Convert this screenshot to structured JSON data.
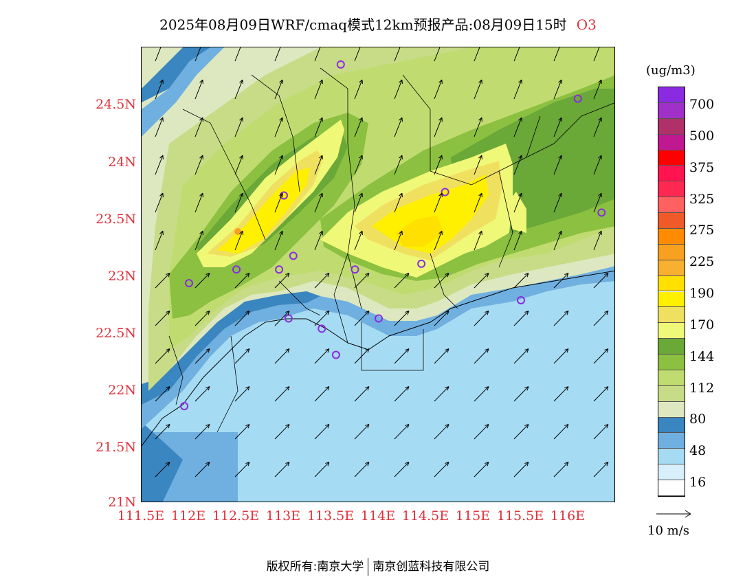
{
  "title": "2025年08月09日WRF/cmaq模式12km预报产品:08月09日15时",
  "species": "O3",
  "map": {
    "lat_ticks": [
      "24.5N",
      "24N",
      "23.5N",
      "23N",
      "22.5N",
      "22N",
      "21.5N",
      "21N"
    ],
    "lon_ticks": [
      "111.5E",
      "112E",
      "112.5E",
      "113E",
      "113.5E",
      "114E",
      "114.5E",
      "115E",
      "115.5E",
      "116E"
    ],
    "lat_range": [
      21,
      25
    ],
    "lon_range": [
      111.5,
      116.5
    ]
  },
  "legend": {
    "unit": "(ug/m3)",
    "labels": [
      "700",
      "500",
      "375",
      "325",
      "275",
      "225",
      "190",
      "170",
      "144",
      "112",
      "80",
      "48",
      "16"
    ],
    "colors": [
      "#8a2be2",
      "#a030c8",
      "#b0306a",
      "#c01890",
      "#ff0000",
      "#ff1450",
      "#ff2850",
      "#ff6060",
      "#f05a28",
      "#ff8c00",
      "#f8a020",
      "#f8b030",
      "#ffe000",
      "#fff000",
      "#f0e060",
      "#f0f878",
      "#6aa838",
      "#8cc040",
      "#c0dc70",
      "#c8dc88",
      "#dde8c0",
      "#3a86c0",
      "#70b0e0",
      "#a6dcf3",
      "#d8f0fc",
      "#ffffff"
    ]
  },
  "reference_vector": {
    "label": "10 m/s"
  },
  "monitor_sites": [
    {
      "lon": 113.6,
      "lat": 24.85
    },
    {
      "lon": 116.1,
      "lat": 24.55
    },
    {
      "lon": 113.0,
      "lat": 23.7
    },
    {
      "lon": 114.7,
      "lat": 23.73
    },
    {
      "lon": 116.35,
      "lat": 23.55
    },
    {
      "lon": 112.5,
      "lat": 23.05
    },
    {
      "lon": 112.95,
      "lat": 23.05
    },
    {
      "lon": 113.1,
      "lat": 23.17
    },
    {
      "lon": 113.75,
      "lat": 23.05
    },
    {
      "lon": 114.45,
      "lat": 23.1
    },
    {
      "lon": 112.0,
      "lat": 22.93
    },
    {
      "lon": 115.5,
      "lat": 22.78
    },
    {
      "lon": 113.05,
      "lat": 22.62
    },
    {
      "lon": 113.4,
      "lat": 22.53
    },
    {
      "lon": 114.0,
      "lat": 22.62
    },
    {
      "lon": 113.55,
      "lat": 22.3
    },
    {
      "lon": 111.95,
      "lat": 21.85
    }
  ],
  "footer": {
    "left": "版权所有:南京大学",
    "right": "南京创蓝科技有限公司"
  }
}
